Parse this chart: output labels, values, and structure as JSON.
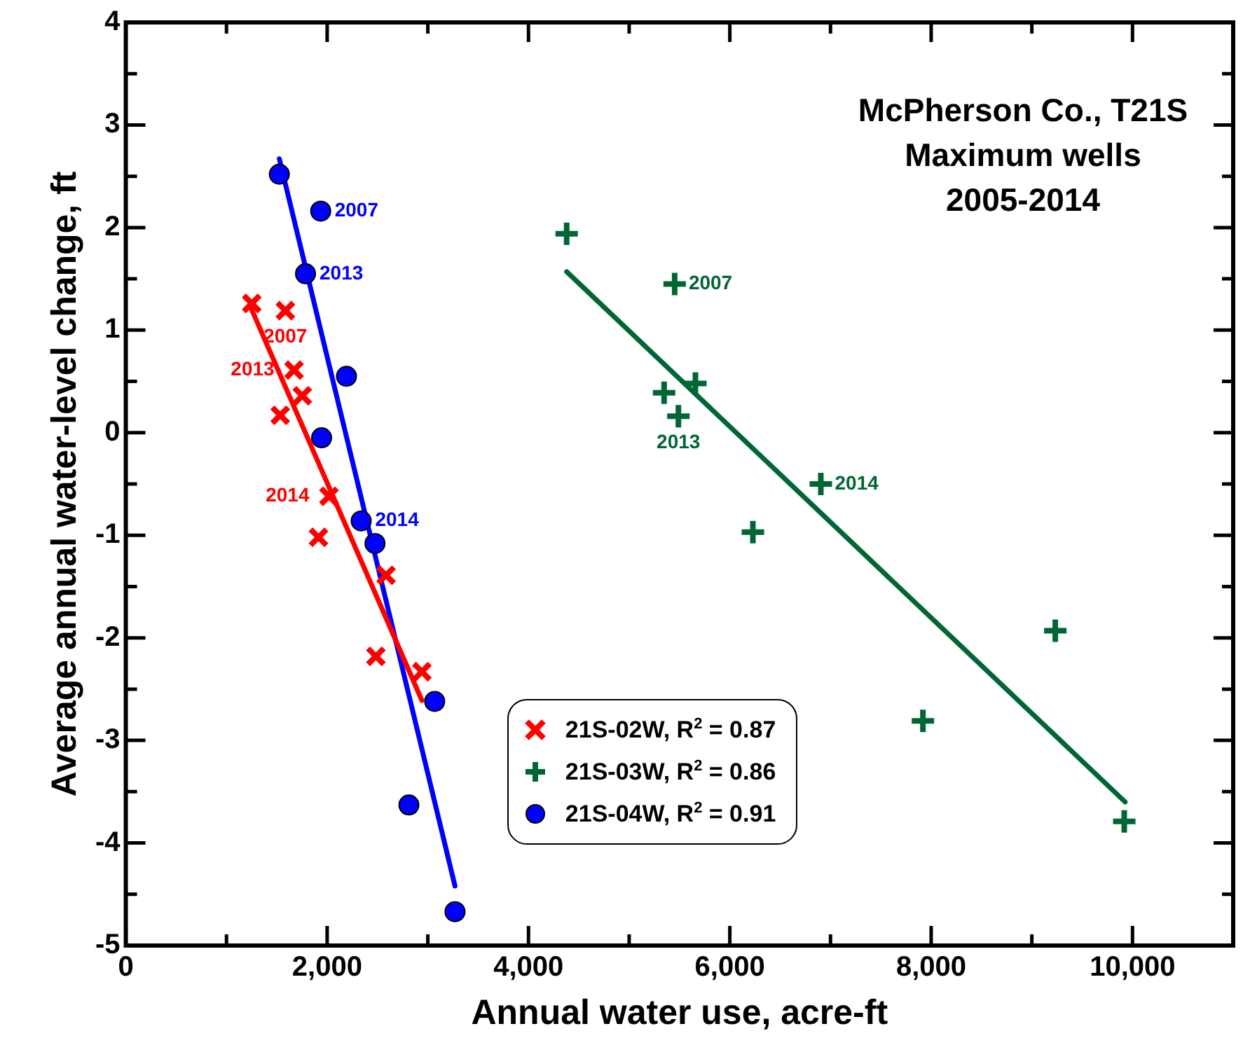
{
  "chart_data": {
    "type": "scatter",
    "title": "McPherson Co., T21S\nMaximum wells\n2005-2014",
    "xlabel": "Annual water use, acre-ft",
    "ylabel": "Average annual water-level change, ft",
    "xlim": [
      0,
      11000
    ],
    "ylim": [
      -5,
      4
    ],
    "xticks": [
      0,
      {
        "value": 1000,
        "label": null
      },
      {
        "value": 2000,
        "label": "2,000"
      },
      {
        "value": 3000,
        "label": null
      },
      {
        "value": 4000,
        "label": "4,000"
      },
      {
        "value": 5000,
        "label": null
      },
      {
        "value": 6000,
        "label": "6,000"
      },
      {
        "value": 7000,
        "label": null
      },
      {
        "value": 8000,
        "label": "8,000"
      },
      {
        "value": 9000,
        "label": null
      },
      {
        "value": 10000,
        "label": "10,000"
      }
    ],
    "yticks": [
      -5,
      {
        "value": -4.5,
        "label": null
      },
      -4,
      {
        "value": -3.5,
        "label": null
      },
      -3,
      {
        "value": -2.5,
        "label": null
      },
      -2,
      {
        "value": -1.5,
        "label": null
      },
      -1,
      {
        "value": -0.5,
        "label": null
      },
      0,
      {
        "value": 0.5,
        "label": null
      },
      1,
      {
        "value": 1.5,
        "label": null
      },
      2,
      {
        "value": 2.5,
        "label": null
      },
      3,
      {
        "value": 3.5,
        "label": null
      },
      4
    ],
    "grid": false,
    "legend": "bottom",
    "series": [
      {
        "name": "21S-02W, R$^{2}$ = 0.87",
        "color": "#ff0000",
        "marker": "x",
        "x": [
          1251,
          1585,
          1671,
          1753,
          1534,
          2018,
          1914,
          2585,
          2484,
          2941
        ],
        "values": [
          1.26,
          1.19,
          0.61,
          0.36,
          0.17,
          -0.62,
          -1.02,
          -1.39,
          -2.18,
          -2.33
        ]
      },
      {
        "name": "21S-03W, R$^{2}$ = 0.86",
        "color": "#006633",
        "marker": "cross",
        "x": [
          4379,
          5452,
          5658,
          5347,
          5489,
          6904,
          6229,
          9233,
          7918,
          9918
        ],
        "values": [
          1.94,
          1.45,
          0.48,
          0.39,
          0.16,
          -0.5,
          -0.97,
          -1.93,
          -2.81,
          -3.79
        ]
      },
      {
        "name": "21S-04W, R$^{2}$ = 0.91",
        "color": "#0000ff",
        "marker": "circle",
        "x": [
          1525,
          1936,
          1785,
          2192,
          1945,
          2338,
          2475,
          3068,
          2812,
          3270
        ],
        "values": [
          2.52,
          2.16,
          1.55,
          0.55,
          -0.05,
          -0.86,
          -1.08,
          -2.62,
          -3.63,
          -4.67
        ]
      },
      {
        "type": "line",
        "color": "#ff0000",
        "x": [
          1251,
          2941
        ],
        "values": [
          1.2,
          -2.61
        ]
      },
      {
        "type": "line",
        "color": "#006633",
        "x": [
          4379,
          9927
        ],
        "values": [
          1.57,
          -3.6
        ]
      },
      {
        "type": "line",
        "color": "#0000ff",
        "x": [
          1525,
          3270
        ],
        "values": [
          2.67,
          -4.42
        ]
      }
    ],
    "annotations": [
      {
        "text": "2007",
        "x": 1936,
        "y": 2.16
      },
      {
        "text": "2013",
        "x": 1785,
        "y": 1.55
      },
      {
        "text": "2014",
        "x": 2338,
        "y": -0.86
      },
      {
        "text": "2007",
        "x": 1585,
        "y": 1.19
      },
      {
        "text": "2013",
        "x": 1671,
        "y": 0.61
      },
      {
        "text": "2014",
        "x": 2018,
        "y": -0.62
      },
      {
        "text": "2007",
        "x": 5452,
        "y": 1.45
      },
      {
        "text": "2013",
        "x": 5489,
        "y": 0.16
      },
      {
        "text": "2014",
        "x": 6904,
        "y": -0.5
      }
    ]
  }
}
